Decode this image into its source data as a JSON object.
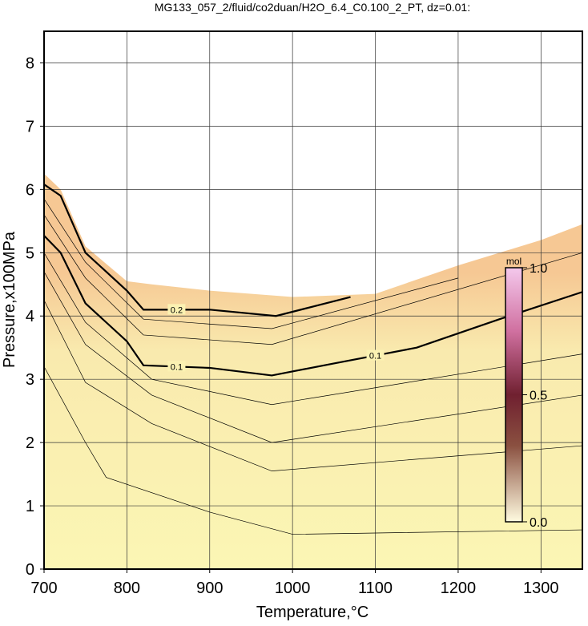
{
  "chart_data": {
    "type": "contour",
    "title": "MG133_057_2/fluid/co2duan/H2O_6.4_C0.100_2_PT, dz=0.01:",
    "x_label": "Temperature,°C",
    "y_label": "Pressure,x100MPa",
    "xlim": [
      700,
      1350
    ],
    "ylim": [
      0,
      8.5
    ],
    "xticks": [
      700,
      800,
      900,
      1000,
      1100,
      1200,
      1300
    ],
    "yticks": [
      0,
      1,
      2,
      3,
      4,
      5,
      6,
      7,
      8
    ],
    "grid": true,
    "region": {
      "color": "#f9eeb0",
      "x": [
        700,
        720,
        750,
        800,
        830,
        900,
        1000,
        1100,
        1200,
        1300,
        1350
      ],
      "y": [
        6.25,
        6.0,
        5.1,
        4.55,
        4.5,
        4.4,
        4.3,
        4.35,
        4.8,
        5.2,
        5.45
      ]
    },
    "contours": [
      {
        "level": 0.1,
        "x": [
          700,
          720,
          750,
          800,
          820,
          900,
          975,
          1050,
          1150,
          1250,
          1350
        ],
        "y": [
          5.27,
          5.0,
          4.2,
          3.6,
          3.22,
          3.18,
          3.06,
          3.25,
          3.5,
          3.95,
          4.38
        ]
      },
      {
        "level": 0.2,
        "x": [
          700,
          720,
          750,
          800,
          820,
          900,
          980,
          1070
        ],
        "y": [
          6.08,
          5.9,
          5.0,
          4.4,
          4.1,
          4.1,
          4.0,
          4.3
        ]
      },
      {
        "x": [
          700,
          750,
          775,
          900,
          1000,
          1350
        ],
        "y": [
          3.2,
          2.0,
          1.45,
          0.9,
          0.55,
          0.62
        ]
      },
      {
        "x": [
          700,
          750,
          830,
          975,
          1350
        ],
        "y": [
          4.25,
          2.95,
          2.3,
          1.55,
          1.95
        ]
      },
      {
        "x": [
          700,
          750,
          830,
          975,
          1350
        ],
        "y": [
          4.7,
          3.55,
          2.75,
          2.0,
          2.75
        ]
      },
      {
        "x": [
          700,
          750,
          830,
          975,
          1350
        ],
        "y": [
          5.0,
          3.9,
          3.0,
          2.6,
          3.4
        ]
      },
      {
        "x": [
          700,
          750,
          820,
          975,
          1350
        ],
        "y": [
          5.6,
          4.6,
          3.7,
          3.55,
          5.0
        ]
      },
      {
        "x": [
          700,
          750,
          820,
          975,
          1200
        ],
        "y": [
          5.85,
          4.85,
          3.95,
          3.8,
          4.6
        ]
      }
    ],
    "colorbar": {
      "label": "mol",
      "lim": [
        0,
        1
      ],
      "ticks": [
        {
          "value": 0,
          "label": "0.0"
        },
        {
          "value": 0.5,
          "label": "0.5"
        },
        {
          "value": 1,
          "label": "1.0"
        }
      ]
    }
  }
}
